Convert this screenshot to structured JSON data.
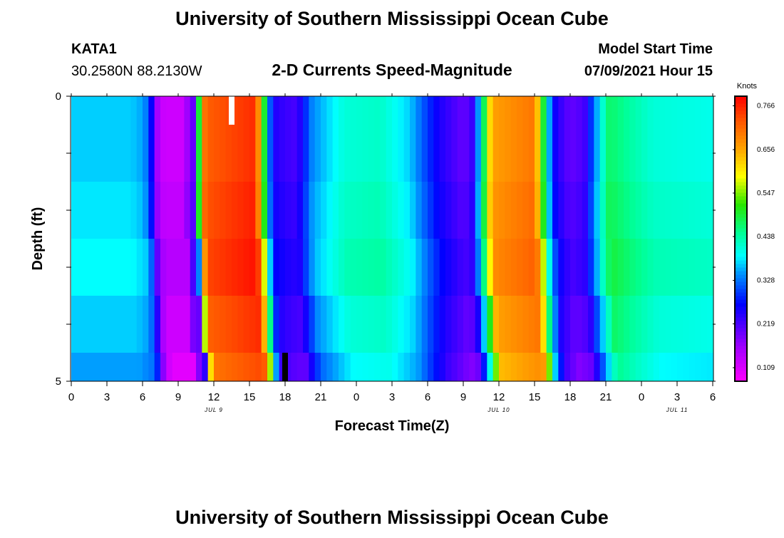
{
  "header": {
    "title": "University of Southern Mississippi Ocean Cube",
    "station_id": "KATA1",
    "station_coords": "30.2580N  88.2130W",
    "model_label": "Model Start Time",
    "model_time": "07/09/2021 Hour 15"
  },
  "footer": {
    "title": "University of Southern Mississippi Ocean Cube"
  },
  "chart_data": {
    "type": "heatmap",
    "title": "2-D Currents Speed-Magnitude",
    "xlabel": "Forecast Time(Z)",
    "ylabel": "Depth (ft)",
    "units": "Knots",
    "xlim": [
      0,
      54
    ],
    "ylim": [
      0,
      5
    ],
    "x_tick_values": [
      0,
      3,
      6,
      9,
      12,
      15,
      18,
      21,
      24,
      27,
      30,
      33,
      36,
      39,
      42,
      45,
      48,
      51,
      54
    ],
    "x_tick_labels": [
      "0",
      "3",
      "6",
      "9",
      "12",
      "15",
      "18",
      "21",
      "0",
      "3",
      "6",
      "9",
      "12",
      "15",
      "18",
      "21",
      "0",
      "3",
      "6"
    ],
    "y_tick_labels": [
      "0",
      "5"
    ],
    "date_labels": [
      {
        "x": 12,
        "label": "JUL 9"
      },
      {
        "x": 36,
        "label": "JUL 10"
      },
      {
        "x": 51,
        "label": "JUL 11"
      }
    ],
    "colorbar": {
      "min": 0.075,
      "max": 0.79,
      "ticks": [
        0.766,
        0.656,
        0.547,
        0.438,
        0.328,
        0.219,
        0.109
      ],
      "tick_labels": [
        "0.766",
        "0.656",
        "0.547",
        "0.438",
        "0.328",
        "0.219",
        "0.109"
      ]
    },
    "depth_layers": [
      0,
      1,
      2,
      3,
      4,
      5
    ],
    "layers": [
      {
        "shift": 0.0,
        "offset": 0.0
      },
      {
        "shift": 0.0,
        "offset": 0.0
      },
      {
        "shift": 0.0,
        "offset": 0.01
      },
      {
        "shift": 0.15,
        "offset": 0.02
      },
      {
        "shift": 0.4,
        "offset": 0.0
      },
      {
        "shift": 0.7,
        "offset": -0.02
      }
    ],
    "profile": [
      [
        0,
        0.37
      ],
      [
        5,
        0.37
      ],
      [
        6.1,
        0.35
      ],
      [
        6.6,
        0.3
      ],
      [
        7.2,
        0.16
      ],
      [
        7.8,
        0.12
      ],
      [
        9.6,
        0.12
      ],
      [
        9.9,
        0.2
      ],
      [
        10.5,
        0.2
      ],
      [
        10.8,
        0.55
      ],
      [
        11.3,
        0.72
      ],
      [
        15.5,
        0.76
      ],
      [
        16.0,
        0.6
      ],
      [
        16.6,
        0.35
      ],
      [
        17.0,
        0.25
      ],
      [
        18.0,
        0.23
      ],
      [
        19.0,
        0.22
      ],
      [
        19.6,
        0.28
      ],
      [
        20.3,
        0.34
      ],
      [
        23.0,
        0.41
      ],
      [
        26.0,
        0.42
      ],
      [
        28.5,
        0.37
      ],
      [
        29.7,
        0.31
      ],
      [
        31.0,
        0.25
      ],
      [
        33.0,
        0.2
      ],
      [
        33.7,
        0.22
      ],
      [
        34.4,
        0.38
      ],
      [
        35.4,
        0.66
      ],
      [
        39.0,
        0.7
      ],
      [
        39.6,
        0.55
      ],
      [
        40.0,
        0.4
      ],
      [
        40.8,
        0.25
      ],
      [
        42.0,
        0.2
      ],
      [
        43.2,
        0.22
      ],
      [
        43.8,
        0.3
      ],
      [
        44.6,
        0.4
      ],
      [
        45.3,
        0.47
      ],
      [
        47.0,
        0.44
      ],
      [
        49.0,
        0.41
      ],
      [
        54.0,
        0.4
      ]
    ],
    "markers": [
      {
        "x": 13.5,
        "depth_from": 0,
        "depth_to": 0.5,
        "color": "#ffffff"
      },
      {
        "x": 18.0,
        "depth_from": 4.5,
        "depth_to": 5.0,
        "color": "#000000"
      }
    ]
  }
}
